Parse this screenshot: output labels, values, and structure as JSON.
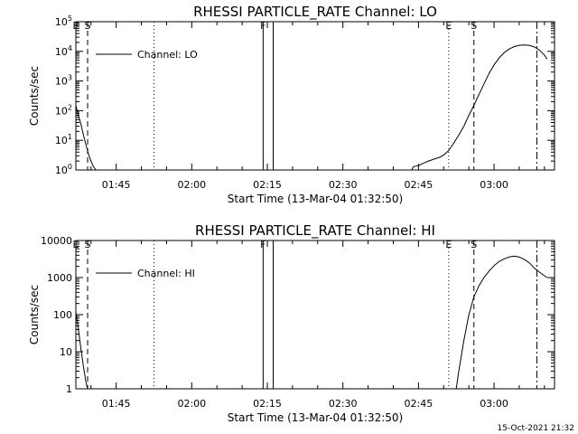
{
  "footer": {
    "timestamp": "15-Oct-2021 21:32"
  },
  "marker_labels": {
    "E": "E",
    "S": "S",
    "F": "F"
  },
  "chart_data": [
    {
      "type": "line",
      "title": "RHESSI PARTICLE_RATE Channel: LO",
      "xlabel": "Start Time (13-Mar-04 01:32:50)",
      "ylabel": "Counts/sec",
      "y_scale": "log",
      "xlim": [
        "01:37:00",
        "03:12:00"
      ],
      "ylim": [
        1,
        100000
      ],
      "x_ticks": [
        "01:45",
        "02:00",
        "02:15",
        "02:30",
        "02:45",
        "03:00"
      ],
      "y_ticks": [
        {
          "value": 1,
          "base": "10",
          "exp": "0"
        },
        {
          "value": 10,
          "base": "10",
          "exp": "1"
        },
        {
          "value": 100,
          "base": "10",
          "exp": "2"
        },
        {
          "value": 1000,
          "base": "10",
          "exp": "3"
        },
        {
          "value": 10000,
          "base": "10",
          "exp": "4"
        },
        {
          "value": 100000,
          "base": "10",
          "exp": "5"
        }
      ],
      "legend": {
        "position": "top-left",
        "label": "Channel: LO"
      },
      "series": [
        {
          "name": "Channel: LO",
          "points": [
            [
              "01:37:00",
              150
            ],
            [
              "01:37:30",
              70
            ],
            [
              "01:38:00",
              35
            ],
            [
              "01:38:30",
              15
            ],
            [
              "01:39:00",
              7
            ],
            [
              "01:39:30",
              3.5
            ],
            [
              "01:40:00",
              2
            ],
            [
              "01:40:30",
              1.3
            ],
            [
              "01:41:00",
              1
            ],
            [
              "02:43:40",
              1
            ],
            [
              "02:44:00",
              1.3
            ],
            [
              "02:45:00",
              1.4
            ],
            [
              "02:46:00",
              1.7
            ],
            [
              "02:47:00",
              2
            ],
            [
              "02:48:00",
              2.3
            ],
            [
              "02:49:00",
              2.6
            ],
            [
              "02:50:00",
              3.2
            ],
            [
              "02:51:00",
              4.5
            ],
            [
              "02:52:00",
              8
            ],
            [
              "02:53:00",
              15
            ],
            [
              "02:54:00",
              30
            ],
            [
              "02:55:00",
              70
            ],
            [
              "02:56:00",
              150
            ],
            [
              "02:57:00",
              350
            ],
            [
              "02:58:00",
              800
            ],
            [
              "02:59:00",
              1800
            ],
            [
              "03:00:00",
              3500
            ],
            [
              "03:01:00",
              6000
            ],
            [
              "03:02:00",
              9000
            ],
            [
              "03:03:00",
              12000
            ],
            [
              "03:04:00",
              14500
            ],
            [
              "03:05:00",
              16000
            ],
            [
              "03:06:00",
              16500
            ],
            [
              "03:07:00",
              16000
            ],
            [
              "03:08:00",
              14000
            ],
            [
              "03:09:00",
              11000
            ],
            [
              "03:10:00",
              7500
            ],
            [
              "03:10:30",
              5500
            ]
          ]
        }
      ],
      "markers": [
        {
          "label": "E",
          "time": "01:37:00",
          "style": "dotted"
        },
        {
          "label": "S",
          "time": "01:39:20",
          "style": "dashed"
        },
        {
          "label": "",
          "time": "01:52:30",
          "style": "dotted"
        },
        {
          "label": "F",
          "time": "02:14:10",
          "style": "solid"
        },
        {
          "label": "",
          "time": "02:16:10",
          "style": "solid"
        },
        {
          "label": "E",
          "time": "02:51:00",
          "style": "dotted"
        },
        {
          "label": "S",
          "time": "02:56:00",
          "style": "dashed"
        },
        {
          "label": "",
          "time": "03:08:30",
          "style": "dashdot"
        }
      ]
    },
    {
      "type": "line",
      "title": "RHESSI PARTICLE_RATE Channel: HI",
      "xlabel": "Start Time (13-Mar-04 01:32:50)",
      "ylabel": "Counts/sec",
      "y_scale": "log",
      "xlim": [
        "01:37:00",
        "03:12:00"
      ],
      "ylim": [
        1,
        10000
      ],
      "x_ticks": [
        "01:45",
        "02:00",
        "02:15",
        "02:30",
        "02:45",
        "03:00"
      ],
      "y_ticks": [
        {
          "value": 1,
          "label": "1"
        },
        {
          "value": 10,
          "label": "10"
        },
        {
          "value": 100,
          "label": "100"
        },
        {
          "value": 1000,
          "label": "1000"
        },
        {
          "value": 10000,
          "label": "10000"
        }
      ],
      "legend": {
        "position": "top-left",
        "label": "Channel: HI"
      },
      "series": [
        {
          "name": "Channel: HI",
          "points": [
            [
              "01:37:00",
              120
            ],
            [
              "01:37:30",
              40
            ],
            [
              "01:38:00",
              12
            ],
            [
              "01:38:30",
              4
            ],
            [
              "01:39:00",
              1.5
            ],
            [
              "01:39:20",
              1
            ],
            [
              "02:52:30",
              1
            ],
            [
              "02:53:00",
              3
            ],
            [
              "02:54:00",
              20
            ],
            [
              "02:55:00",
              100
            ],
            [
              "02:56:00",
              300
            ],
            [
              "02:57:00",
              600
            ],
            [
              "02:58:00",
              1000
            ],
            [
              "02:59:00",
              1500
            ],
            [
              "03:00:00",
              2100
            ],
            [
              "03:01:00",
              2700
            ],
            [
              "03:02:00",
              3200
            ],
            [
              "03:03:00",
              3600
            ],
            [
              "03:04:00",
              3800
            ],
            [
              "03:05:00",
              3600
            ],
            [
              "03:06:00",
              3100
            ],
            [
              "03:07:00",
              2500
            ],
            [
              "03:08:00",
              1800
            ],
            [
              "03:09:00",
              1400
            ],
            [
              "03:10:30",
              1000
            ]
          ]
        }
      ],
      "markers": [
        {
          "label": "E",
          "time": "01:37:00",
          "style": "dotted"
        },
        {
          "label": "S",
          "time": "01:39:20",
          "style": "dashed"
        },
        {
          "label": "",
          "time": "01:52:30",
          "style": "dotted"
        },
        {
          "label": "F",
          "time": "02:14:10",
          "style": "solid"
        },
        {
          "label": "",
          "time": "02:16:10",
          "style": "solid"
        },
        {
          "label": "E",
          "time": "02:51:00",
          "style": "dotted"
        },
        {
          "label": "S",
          "time": "02:56:00",
          "style": "dashed"
        },
        {
          "label": "",
          "time": "03:08:30",
          "style": "dashdot"
        }
      ]
    }
  ]
}
